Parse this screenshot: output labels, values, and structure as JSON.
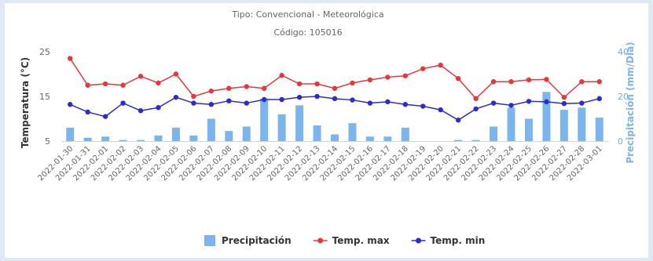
{
  "chart_data": {
    "type": "line",
    "subtitle_lines": [
      "Tipo: Convencional - Meteorológica",
      "Código: 105016"
    ],
    "categories": [
      "2022-01-30",
      "2022-01-31",
      "2022-02-01",
      "2022-02-02",
      "2022-02-03",
      "2022-02-04",
      "2022-02-05",
      "2022-02-06",
      "2022-02-07",
      "2022-02-08",
      "2022-02-09",
      "2022-02-10",
      "2022-02-11",
      "2022-02-12",
      "2022-02-13",
      "2022-02-14",
      "2022-02-15",
      "2022-02-16",
      "2022-02-17",
      "2022-02-18",
      "2022-02-19",
      "2022-02-20",
      "2022-02-21",
      "2022-02-22",
      "2022-02-23",
      "2022-02-24",
      "2022-02-25",
      "2022-02-26",
      "2022-02-27",
      "2022-02-28",
      "2022-03-01"
    ],
    "series": [
      {
        "name": "Precipitación",
        "type": "bar",
        "axis": "right",
        "color": "#7cb5ec",
        "values": [
          6,
          1.5,
          2,
          0.5,
          0.5,
          2.5,
          6,
          2.5,
          10,
          4.5,
          6.5,
          19,
          12,
          16,
          7,
          3,
          8,
          2,
          2,
          6,
          0,
          0,
          0.5,
          0.5,
          6.5,
          15,
          10,
          22,
          14,
          15,
          10.5
        ]
      },
      {
        "name": "Temp. max",
        "type": "line",
        "axis": "left",
        "color": "#e8363b",
        "values": [
          23.5,
          17.5,
          17.8,
          17.5,
          19.5,
          18,
          20,
          15,
          16.2,
          16.8,
          17.2,
          16.8,
          19.7,
          17.8,
          17.8,
          16.8,
          18,
          18.7,
          19.3,
          19.6,
          21.2,
          22,
          19,
          14.5,
          18.3,
          18.3,
          18.7,
          18.8,
          14.8,
          18.3,
          18.3
        ]
      },
      {
        "name": "Temp. min",
        "type": "line",
        "axis": "left",
        "color": "#2b2bd0",
        "values": [
          13.2,
          11.5,
          10.5,
          13.5,
          11.8,
          12.5,
          14.8,
          13.5,
          13.2,
          14,
          13.5,
          14.3,
          14.3,
          14.8,
          15,
          14.5,
          14.2,
          13.5,
          13.8,
          13.2,
          12.8,
          12,
          9.7,
          12.2,
          13.5,
          13,
          13.9,
          13.8,
          13.4,
          13.5,
          14.5
        ]
      }
    ],
    "y_left": {
      "title": "Temperatura (°C)",
      "ticks": [
        5,
        15,
        25
      ],
      "range": [
        5,
        25
      ]
    },
    "y_right": {
      "title": "Precipitación (mm/Día)",
      "ticks": [
        0,
        20,
        40
      ],
      "range": [
        0,
        40
      ]
    },
    "grid": false,
    "legend": "bottom-center"
  }
}
